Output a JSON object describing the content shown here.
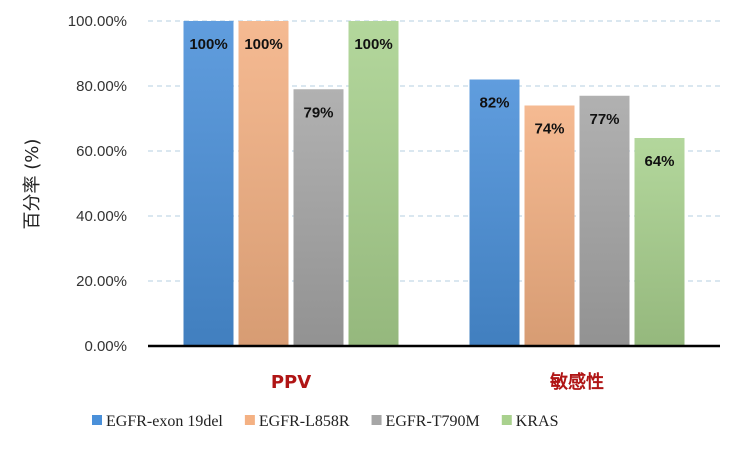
{
  "chart_data": {
    "type": "bar",
    "categories": [
      "PPV",
      "敏感性"
    ],
    "series": [
      {
        "name": "EGFR-exon 19del",
        "values": [
          100,
          82
        ],
        "labels": [
          "100%",
          "82%"
        ],
        "color": "#4a90d9"
      },
      {
        "name": "EGFR-L858R",
        "values": [
          100,
          74
        ],
        "labels": [
          "100%",
          "74%"
        ],
        "color": "#f4b183"
      },
      {
        "name": "EGFR-T790M",
        "values": [
          79,
          77
        ],
        "labels": [
          "79%",
          "77%"
        ],
        "color": "#a6a6a6"
      },
      {
        "name": "KRAS",
        "values": [
          100,
          64
        ],
        "labels": [
          "100%",
          "64%"
        ],
        "color": "#a9d18e"
      }
    ],
    "ylabel": "百分率 (%)",
    "xlabel": "",
    "ylim": [
      0,
      100
    ],
    "yticks": [
      0,
      20,
      40,
      60,
      80,
      100
    ],
    "ytick_labels": [
      "0.00%",
      "20.00%",
      "40.00%",
      "60.00%",
      "80.00%",
      "100.00%"
    ],
    "grid": true,
    "legend_position": "bottom"
  }
}
